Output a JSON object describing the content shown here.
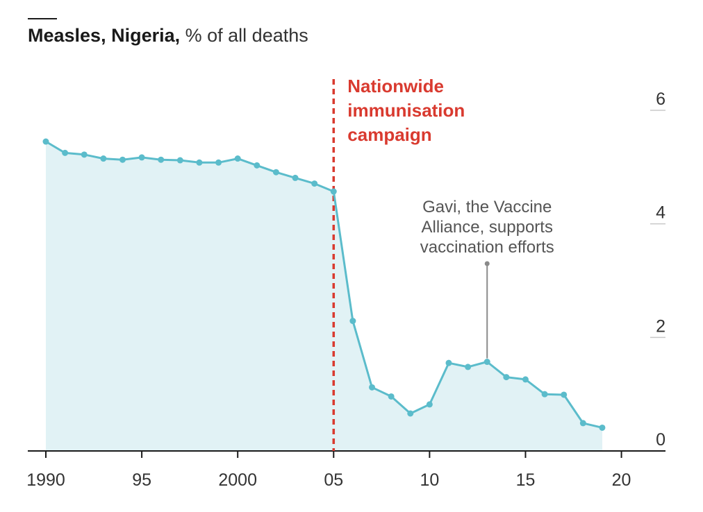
{
  "title": {
    "bold": "Measles, Nigeria,",
    "sub": "% of all deaths"
  },
  "colors": {
    "line": "#5bbccb",
    "area": "#e1f2f5",
    "event": "#d93a2f",
    "annotation": "#8a8a8a",
    "axis": "#1a1a1a",
    "grid": "#c8c8c8"
  },
  "chart_data": {
    "type": "area",
    "x": [
      1990,
      1991,
      1992,
      1993,
      1994,
      1995,
      1996,
      1997,
      1998,
      1999,
      2000,
      2001,
      2002,
      2003,
      2004,
      2005,
      2006,
      2007,
      2008,
      2009,
      2010,
      2011,
      2012,
      2013,
      2014,
      2015,
      2016,
      2017,
      2018,
      2019
    ],
    "series": [
      {
        "values": [
          5.45,
          5.25,
          5.22,
          5.15,
          5.13,
          5.17,
          5.13,
          5.12,
          5.08,
          5.08,
          5.15,
          5.03,
          4.91,
          4.81,
          4.71,
          4.57,
          2.29,
          1.12,
          0.96,
          0.66,
          0.82,
          1.55,
          1.48,
          1.57,
          1.3,
          1.26,
          1.0,
          0.99,
          0.49,
          0.41
        ]
      }
    ],
    "xlim": [
      1990,
      2021.5
    ],
    "ylim": [
      0,
      6
    ],
    "x_ticks": [
      1990,
      1995,
      2000,
      2005,
      2010,
      2015,
      2020
    ],
    "x_tick_labels": [
      "1990",
      "95",
      "2000",
      "05",
      "10",
      "15",
      "20"
    ],
    "y_ticks": [
      0,
      2,
      4,
      6
    ],
    "y_tick_labels": [
      "0",
      "2",
      "4",
      "6"
    ],
    "y_axis_side": "right",
    "grid": false,
    "annotations": [
      {
        "id": "campaign",
        "x": 2005,
        "lines": [
          "Nationwide",
          "immunisation",
          "campaign"
        ]
      },
      {
        "id": "gavi",
        "x": 2013,
        "y": 1.57,
        "lines": [
          "Gavi, the Vaccine",
          "Alliance, supports",
          "vaccination efforts"
        ]
      }
    ]
  }
}
